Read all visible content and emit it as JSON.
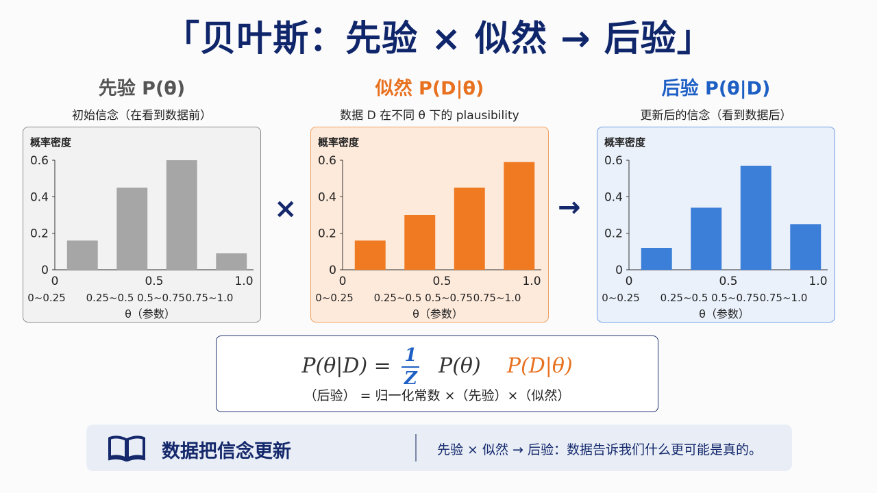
{
  "title": "「贝叶斯：先验 × 似然 → 后验」",
  "columns": [
    {
      "title": "先验 P(θ)",
      "subtitle": "初始信念（在看到数据前）"
    },
    {
      "title": "似然 P(D|θ)",
      "subtitle": "数据 D 在不同 θ 下的 plausibility"
    },
    {
      "title": "后验 P(θ|D)",
      "subtitle": "更新后的信念（看到数据后）"
    }
  ],
  "operators": {
    "times": "×",
    "arrow": "→"
  },
  "colors": {
    "prior": "#a6a6a6",
    "likelihood": "#f07a22",
    "posterior": "#3b7fd9",
    "navy": "#14286b"
  },
  "chart_data": [
    {
      "type": "bar",
      "ylabel": "概率密度",
      "xlabel": "θ（参数）",
      "categories": [
        "0~0.25",
        "0.25~0.5",
        "0.5~0.75",
        "0.75~1.0"
      ],
      "x_ticks": [
        "0",
        "0.5",
        "1.0"
      ],
      "y_ticks": [
        "0.6",
        "0.4",
        "0.2",
        "0"
      ],
      "ylim": [
        0,
        0.6
      ],
      "values": [
        0.16,
        0.45,
        0.6,
        0.09
      ],
      "color": "#a6a6a6"
    },
    {
      "type": "bar",
      "ylabel": "概率密度",
      "xlabel": "θ（参数）",
      "categories": [
        "0~0.25",
        "0.25~0.5",
        "0.5~0.75",
        "0.75~1.0"
      ],
      "x_ticks": [
        "0",
        "0.5",
        "1.0"
      ],
      "y_ticks": [
        "0.6",
        "0.4",
        "0.2",
        "0"
      ],
      "ylim": [
        0,
        0.6
      ],
      "values": [
        0.16,
        0.3,
        0.45,
        0.59
      ],
      "color": "#f07a22"
    },
    {
      "type": "bar",
      "ylabel": "概率密度",
      "xlabel": "θ（参数）",
      "categories": [
        "0~0.25",
        "0.25~0.5",
        "0.5~0.75",
        "0.75~1.0"
      ],
      "x_ticks": [
        "0",
        "0.5",
        "1.0"
      ],
      "y_ticks": [
        "0.6",
        "0.4",
        "0.2",
        "0"
      ],
      "ylim": [
        0,
        0.6
      ],
      "values": [
        0.12,
        0.34,
        0.57,
        0.25
      ],
      "color": "#3b7fd9"
    }
  ],
  "formula": {
    "lhs": "P(θ|D) =",
    "numerator": "1",
    "denominator": "Z",
    "prior_term": "P(θ)",
    "likelihood_term": "P(D|θ)",
    "caption": "（后验） = 归一化常数 ×（先验）×（似然）"
  },
  "banner": {
    "icon": "open-book-icon",
    "title": "数据把信念更新",
    "text": "先验 × 似然 → 后验：数据告诉我们什么更可能是真的。"
  }
}
